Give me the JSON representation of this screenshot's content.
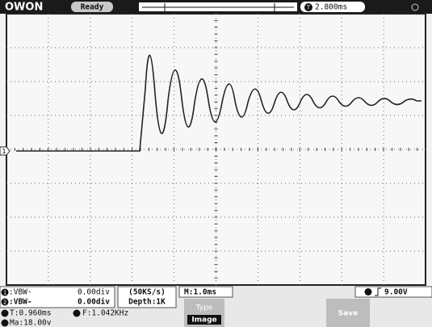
{
  "header": {
    "brand": "OWON",
    "status": "Ready",
    "trigger_marker": "T",
    "trigger_time": "2.800ms"
  },
  "channel_marker": "1",
  "measurements": {
    "ch1_index": "1",
    "ch1_mode": ":VBW-",
    "ch1_scale": "0.00div",
    "ch2_index": "2",
    "ch2_mode": ":VBW-",
    "ch2_scale": "0.00div",
    "period": "T:0.960ms",
    "frequency": "F:1.042KHz",
    "amplitude": "Ma:18.00v"
  },
  "acquisition": {
    "rate": "(50KS/s)",
    "depth": "Depth:1K"
  },
  "timebase": "M:1.0ms",
  "trigger_level": "9.00V",
  "menu": {
    "type_label": "Type",
    "type_value": "Image",
    "save": "Save"
  }
}
